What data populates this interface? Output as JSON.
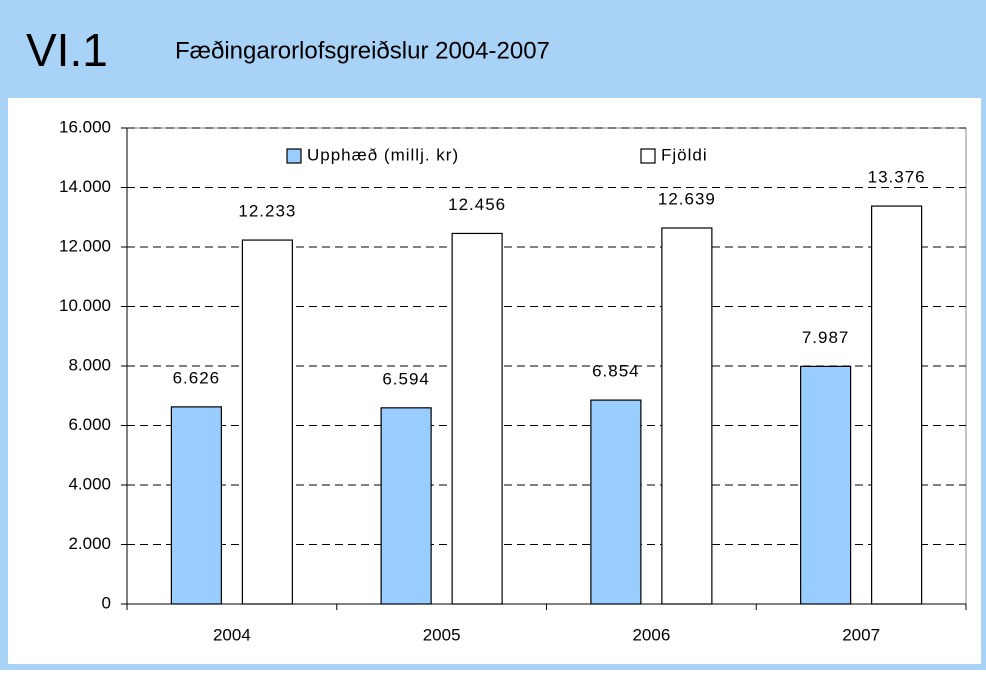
{
  "header": {
    "section": "VI.1"
  },
  "chart_data": {
    "type": "bar",
    "title": "Fæðingarorlofsgreiðslur 2004-2007",
    "categories": [
      "2004",
      "2005",
      "2006",
      "2007"
    ],
    "series": [
      {
        "name": "Upphæð (millj. kr)",
        "color": "#99ccff",
        "values": [
          6626,
          6594,
          6854,
          7987
        ],
        "value_labels": [
          "6.626",
          "6.594",
          "6.854",
          "7.987"
        ]
      },
      {
        "name": "Fjöldi",
        "color": "#ffffff",
        "values": [
          12233,
          12456,
          12639,
          13376
        ],
        "value_labels": [
          "12.233",
          "12.456",
          "12.639",
          "13.376"
        ]
      }
    ],
    "ylim": [
      0,
      16000
    ],
    "yticks": [
      0,
      {
        "value": 2000,
        "label": "2.000"
      },
      {
        "value": 4000,
        "label": "4.000"
      },
      {
        "value": 6000,
        "label": "6.000"
      },
      {
        "value": 8000,
        "label": "8.000"
      },
      {
        "value": 10000,
        "label": "10.000"
      },
      {
        "value": 12000,
        "label": "12.000"
      },
      {
        "value": 14000,
        "label": "14.000"
      },
      {
        "value": 16000,
        "label": "16.000"
      }
    ],
    "grid": true,
    "legend": "top"
  }
}
